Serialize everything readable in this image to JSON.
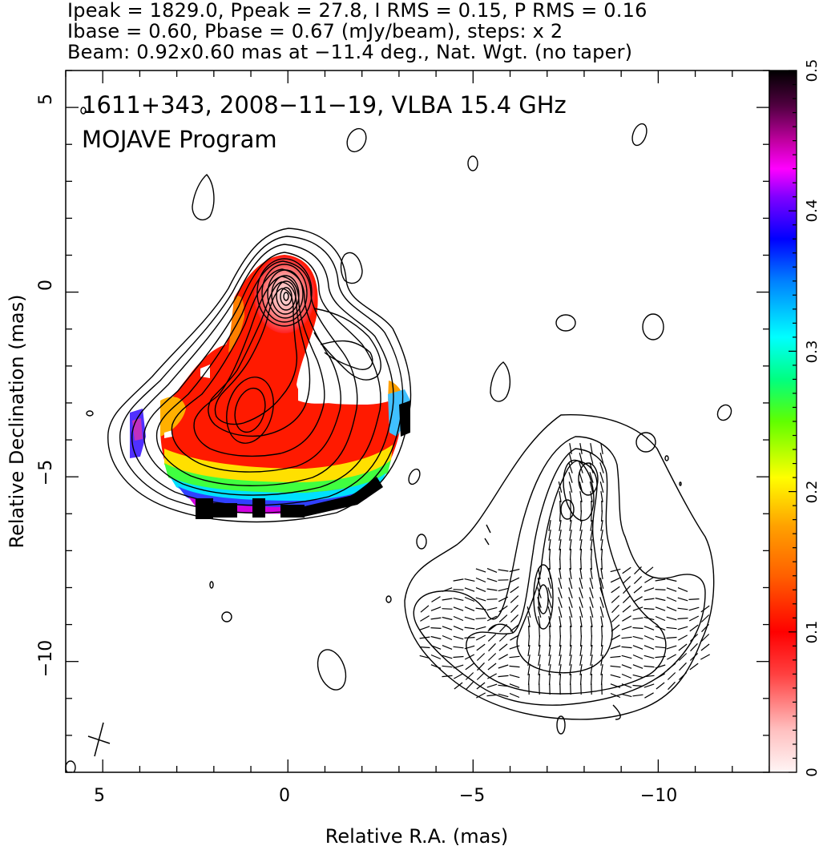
{
  "header": {
    "line1": "Ipeak = 1829.0, Ppeak = 27.8, I RMS = 0.15, P RMS = 0.16",
    "line2": "Ibase = 0.60, Pbase = 0.67 (mJy/beam), steps: x 2",
    "line3": "Beam: 0.92x0.60 mas at −11.4 deg., Nat. Wgt. (no taper)"
  },
  "chart_data": {
    "type": "heatmap",
    "title": "1611+343, 2008−11−19, VLBA 15.4 GHz",
    "subtitle": "MOJAVE Program",
    "xlabel": "Relative R.A. (mas)",
    "ylabel": "Relative Declination (mas)",
    "xlim": [
      6,
      -13
    ],
    "ylim": [
      -13,
      6
    ],
    "x_ticks": [
      5,
      0,
      -5,
      -10
    ],
    "x_tick_labels": [
      "5",
      "0",
      "−5",
      "−10"
    ],
    "y_ticks": [
      5,
      0,
      -5,
      -10
    ],
    "y_tick_labels": [
      "5",
      "0",
      "−5",
      "−10"
    ],
    "colorbar": {
      "range": [
        0,
        0.5
      ],
      "ticks": [
        0,
        0.1,
        0.2,
        0.3,
        0.4,
        0.5
      ],
      "tick_labels": [
        "0",
        "0.1",
        "0.2",
        "0.3",
        "0.4",
        "0.5"
      ]
    },
    "intensity_contours": {
      "peak_mJy_per_beam": 1829.0,
      "base_mJy_per_beam": 0.6,
      "step_factor": 2,
      "core_position": [
        0,
        -0.2
      ],
      "secondary_peak": [
        1.0,
        -3.5
      ]
    },
    "polarization_panel": {
      "core_position": [
        -7.5,
        -6.1
      ],
      "secondary_peak": [
        -7.1,
        -8.4
      ]
    },
    "beam": {
      "major_mas": 0.92,
      "minor_mas": 0.6,
      "pa_deg": -11.4
    }
  }
}
